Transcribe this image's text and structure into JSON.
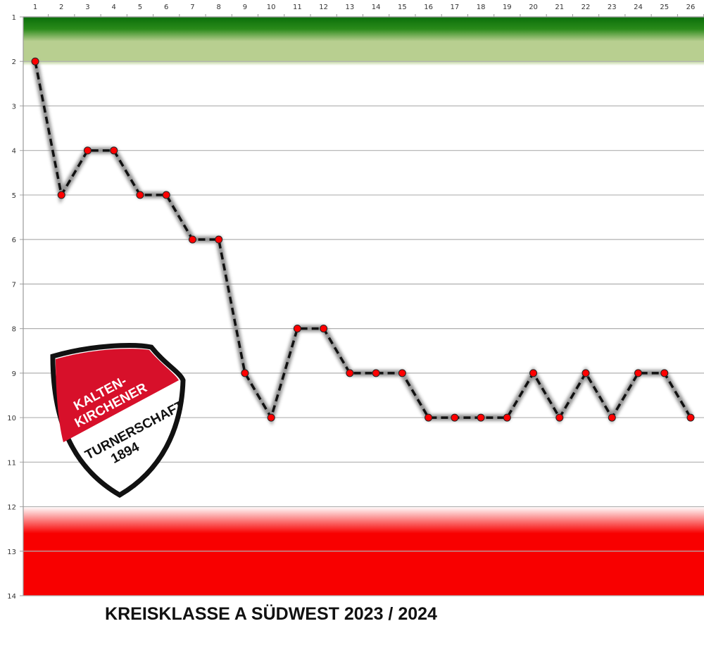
{
  "chart_data": {
    "type": "line",
    "title": "KREISKLASSE A SÜDWEST 2023 / 2024",
    "xlabel": "",
    "ylabel": "",
    "x": [
      1,
      2,
      3,
      4,
      5,
      6,
      7,
      8,
      9,
      10,
      11,
      12,
      13,
      14,
      15,
      16,
      17,
      18,
      19,
      20,
      21,
      22,
      23,
      24,
      25,
      26
    ],
    "values": [
      2,
      5,
      4,
      4,
      5,
      5,
      6,
      6,
      9,
      10,
      8,
      8,
      9,
      9,
      9,
      10,
      10,
      10,
      10,
      9,
      10,
      9,
      10,
      9,
      9,
      10
    ],
    "xlim": [
      1,
      26
    ],
    "ylim": [
      1,
      14
    ],
    "y_inverted": true,
    "x_axis_position": "top",
    "grid": true,
    "bands": [
      {
        "from": 1,
        "to": 2,
        "color": "#0a6e0a"
      },
      {
        "from": 12,
        "to": 14,
        "color": "#f80000"
      }
    ],
    "line_color": "#111111",
    "line_style": "dashed",
    "marker_color": "#ff0000"
  },
  "logo": {
    "line1": "KALTEN-",
    "line2": "KIRCHENER",
    "line3": "TURNERSCHAFT",
    "line4": "1894"
  }
}
